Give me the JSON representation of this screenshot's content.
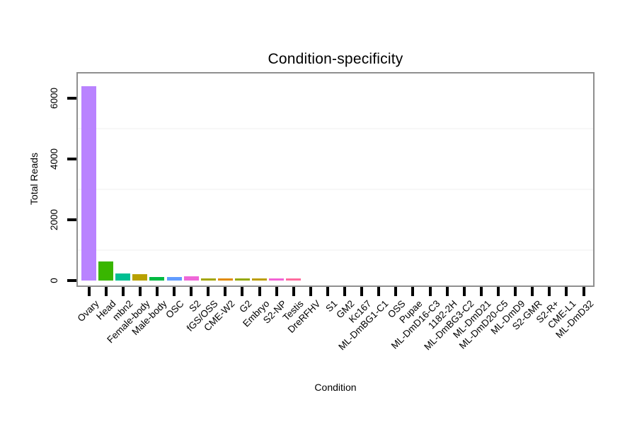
{
  "page": {
    "background": "#ffffff"
  },
  "style": {
    "panel_border_color": "#8f8f8f",
    "tick_color": "#000000",
    "gridline_color": "#f7f7f7",
    "text_color": "#000000"
  },
  "chart_data": {
    "type": "bar",
    "title": "Condition-specificity",
    "xlabel": "Condition",
    "ylabel": "Total Reads",
    "ylim": [
      0,
      6500
    ],
    "yticks": [
      0,
      2000,
      4000,
      6000
    ],
    "ytick_labels": [
      "0",
      "2000",
      "4000",
      "6000"
    ],
    "minor_gridlines": [
      1000,
      3000,
      5000
    ],
    "grid": "minor-horizontal-only",
    "legend_position": "none",
    "x_label_rotation_deg": 45,
    "y_label_rotation_deg": 90,
    "categories": [
      "Ovary",
      "Head",
      "mbn2",
      "Female-body",
      "Male-body",
      "OSC",
      "S2",
      "fGS/OSS",
      "CME-W2",
      "G2",
      "Embryo",
      "S2-NP",
      "Testis",
      "DreRFHV",
      "S1",
      "GM2",
      "Kc167",
      "ML-DmBG1-C1",
      "OSS",
      "Pupae",
      "ML-DmD16-C3",
      "1182-2H",
      "ML-DmBG3-C2",
      "ML-DmD21",
      "ML-DmD20-C5",
      "ML-DmD9",
      "S2-GMR",
      "S2-R+",
      "CME-L1",
      "ML-DmD32"
    ],
    "values": [
      6390,
      630,
      240,
      220,
      120,
      120,
      130,
      70,
      70,
      70,
      70,
      65,
      65,
      0,
      0,
      0,
      0,
      0,
      0,
      0,
      0,
      0,
      0,
      0,
      0,
      0,
      0,
      0,
      0,
      0
    ],
    "colors": [
      "#B983FF",
      "#39B600",
      "#00BF92",
      "#B8A100",
      "#00BA42",
      "#619CFF",
      "#EF67D8",
      "#A3A500",
      "#E18A00",
      "#94A800",
      "#BC9D00",
      "#F263D6",
      "#FF6B9E",
      null,
      null,
      null,
      null,
      null,
      null,
      null,
      null,
      null,
      null,
      null,
      null,
      null,
      null,
      null,
      null,
      null
    ]
  }
}
